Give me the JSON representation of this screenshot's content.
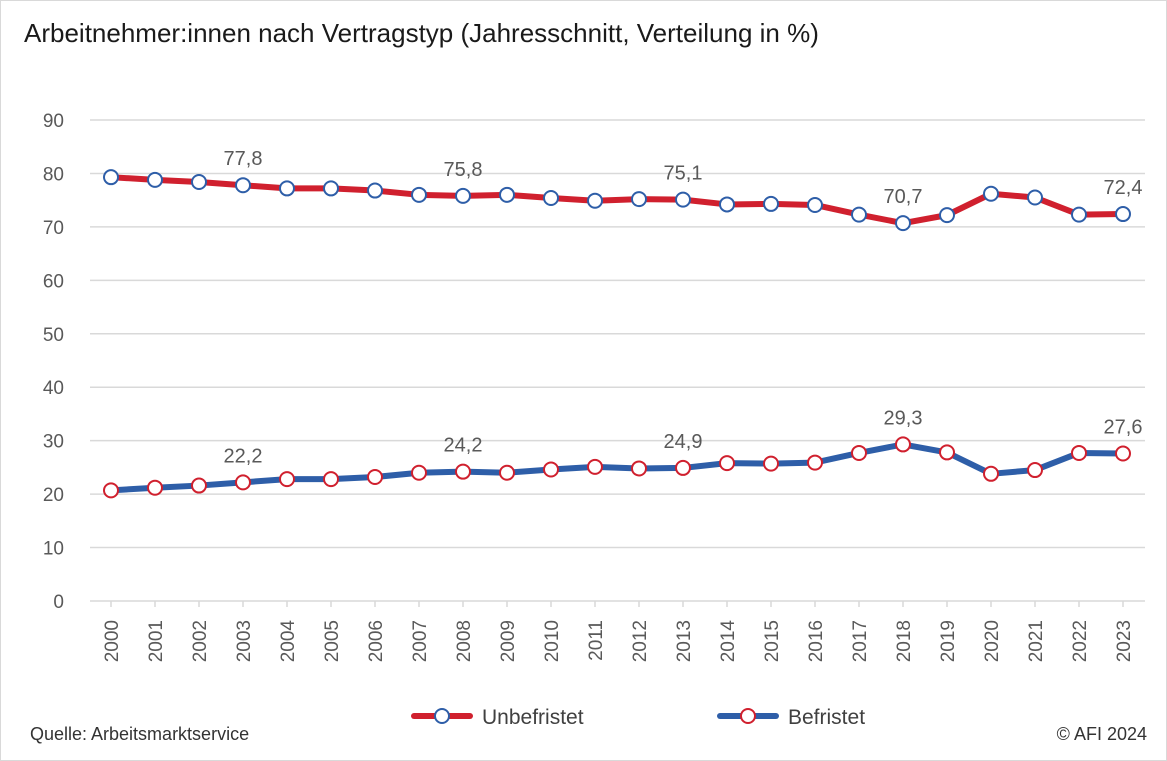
{
  "title": "Arbeitnehmer:innen nach Vertragstyp (Jahresschnitt, Verteilung in %)",
  "source": "Quelle: Arbeitsmarktservice",
  "copyright": "© AFI 2024",
  "colors": {
    "unbefristet": "#d0202e",
    "befristet": "#2e5ea8",
    "grid": "#d9d9d9",
    "marker_fill": "#ffffff"
  },
  "chart_data": {
    "type": "line",
    "categories": [
      "2000",
      "2001",
      "2002",
      "2003",
      "2004",
      "2005",
      "2006",
      "2007",
      "2008",
      "2009",
      "2010",
      "2011",
      "2012",
      "2013",
      "2014",
      "2015",
      "2016",
      "2017",
      "2018",
      "2019",
      "2020",
      "2021",
      "2022",
      "2023"
    ],
    "ylim": [
      0,
      90
    ],
    "yticks": [
      "0",
      "10",
      "20",
      "30",
      "40",
      "50",
      "60",
      "70",
      "80",
      "90"
    ],
    "grid": true,
    "legend_position": "bottom-center",
    "series": [
      {
        "name": "Unbefristet",
        "values": [
          79.3,
          78.8,
          78.4,
          77.8,
          77.2,
          77.2,
          76.8,
          76.0,
          75.8,
          76.0,
          75.4,
          74.9,
          75.2,
          75.1,
          74.2,
          74.3,
          74.1,
          72.3,
          70.7,
          72.2,
          76.2,
          75.5,
          72.3,
          72.4
        ],
        "labels": {
          "3": "77,8",
          "8": "75,8",
          "13": "75,1",
          "18": "70,7",
          "23": "72,4"
        }
      },
      {
        "name": "Befristet",
        "values": [
          20.7,
          21.2,
          21.6,
          22.2,
          22.8,
          22.8,
          23.2,
          24.0,
          24.2,
          24.0,
          24.6,
          25.1,
          24.8,
          24.9,
          25.8,
          25.7,
          25.9,
          27.7,
          29.3,
          27.8,
          23.8,
          24.5,
          27.7,
          27.6
        ],
        "labels": {
          "3": "22,2",
          "8": "24,2",
          "13": "24,9",
          "18": "29,3",
          "23": "27,6"
        }
      }
    ]
  }
}
